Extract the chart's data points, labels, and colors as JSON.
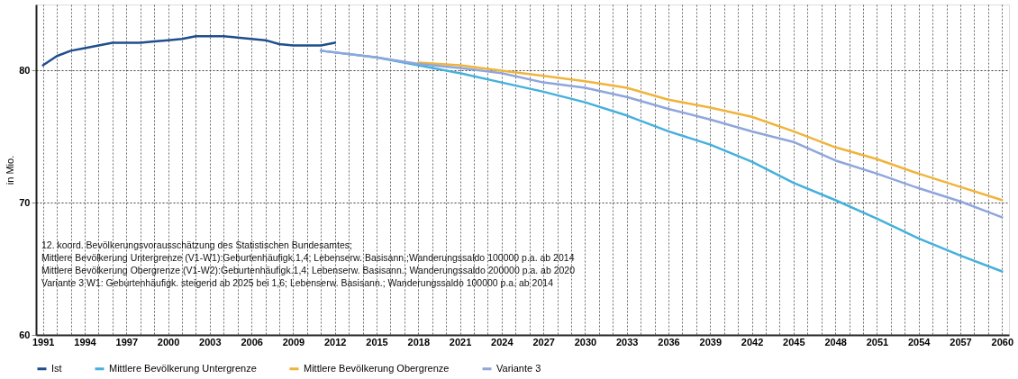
{
  "chart_data": {
    "type": "line",
    "ylabel": "in Mio.",
    "xlim": [
      1990.5,
      2060.5
    ],
    "ylim": [
      60,
      85
    ],
    "yticks": [
      60,
      70,
      80
    ],
    "xticks": [
      1991,
      {
        "value": 1992,
        "label": null
      },
      {
        "value": 1993,
        "label": null
      },
      1994,
      {
        "value": 1995,
        "label": null
      },
      {
        "value": 1996,
        "label": null
      },
      1997,
      {
        "value": 1998,
        "label": null
      },
      {
        "value": 1999,
        "label": null
      },
      2000,
      {
        "value": 2001,
        "label": null
      },
      {
        "value": 2002,
        "label": null
      },
      2003,
      {
        "value": 2004,
        "label": null
      },
      {
        "value": 2005,
        "label": null
      },
      2006,
      {
        "value": 2007,
        "label": null
      },
      {
        "value": 2008,
        "label": null
      },
      2009,
      {
        "value": 2010,
        "label": null
      },
      {
        "value": 2011,
        "label": null
      },
      2012,
      {
        "value": 2013,
        "label": null
      },
      {
        "value": 2014,
        "label": null
      },
      2015,
      {
        "value": 2016,
        "label": null
      },
      {
        "value": 2017,
        "label": null
      },
      2018,
      {
        "value": 2019,
        "label": null
      },
      {
        "value": 2020,
        "label": null
      },
      2021,
      {
        "value": 2022,
        "label": null
      },
      {
        "value": 2023,
        "label": null
      },
      2024,
      {
        "value": 2025,
        "label": null
      },
      {
        "value": 2026,
        "label": null
      },
      2027,
      {
        "value": 2028,
        "label": null
      },
      {
        "value": 2029,
        "label": null
      },
      2030,
      {
        "value": 2031,
        "label": null
      },
      {
        "value": 2032,
        "label": null
      },
      2033,
      {
        "value": 2034,
        "label": null
      },
      {
        "value": 2035,
        "label": null
      },
      2036,
      {
        "value": 2037,
        "label": null
      },
      {
        "value": 2038,
        "label": null
      },
      2039,
      {
        "value": 2040,
        "label": null
      },
      {
        "value": 2041,
        "label": null
      },
      2042,
      {
        "value": 2043,
        "label": null
      },
      {
        "value": 2044,
        "label": null
      },
      2045,
      {
        "value": 2046,
        "label": null
      },
      {
        "value": 2047,
        "label": null
      },
      2048,
      {
        "value": 2049,
        "label": null
      },
      {
        "value": 2050,
        "label": null
      },
      2051,
      {
        "value": 2052,
        "label": null
      },
      {
        "value": 2053,
        "label": null
      },
      2054,
      {
        "value": 2055,
        "label": null
      },
      {
        "value": 2056,
        "label": null
      },
      2057,
      {
        "value": 2058,
        "label": null
      },
      {
        "value": 2059,
        "label": null
      },
      2060
    ],
    "grid": true,
    "legend": "bottom",
    "line_style": "solid",
    "marker": "none",
    "series": [
      {
        "name": "Ist",
        "color": "#1f4e8c",
        "x": [
          1991,
          1992,
          1993,
          1994,
          1995,
          1996,
          1997,
          1998,
          1999,
          2000,
          2001,
          2002,
          2003,
          2004,
          2005,
          2006,
          2007,
          2008,
          2009,
          2010,
          2011,
          2012
        ],
        "values": [
          80.4,
          81.1,
          81.5,
          81.7,
          81.9,
          82.1,
          82.1,
          82.1,
          82.2,
          82.3,
          82.4,
          82.6,
          82.6,
          82.6,
          82.5,
          82.4,
          82.3,
          82.0,
          81.9,
          81.9,
          81.9,
          82.1
        ]
      },
      {
        "name": "Mittlere Bevölkerung Untergrenze",
        "color": "#45b0dc",
        "x": [
          2011,
          2015,
          2018,
          2021,
          2024,
          2027,
          2030,
          2033,
          2036,
          2039,
          2042,
          2045,
          2048,
          2051,
          2054,
          2057,
          2060
        ],
        "values": [
          81.5,
          81.0,
          80.4,
          79.8,
          79.1,
          78.4,
          77.6,
          76.6,
          75.4,
          74.4,
          73.1,
          71.5,
          70.2,
          68.8,
          67.3,
          66.0,
          64.8
        ]
      },
      {
        "name": "Mittlere Bevölkerung Obergrenze",
        "color": "#f0b43c",
        "x": [
          2018,
          2021,
          2024,
          2027,
          2030,
          2033,
          2036,
          2039,
          2042,
          2045,
          2048,
          2051,
          2054,
          2057,
          2060
        ],
        "values": [
          80.6,
          80.4,
          80.0,
          79.6,
          79.2,
          78.7,
          77.8,
          77.2,
          76.5,
          75.4,
          74.2,
          73.3,
          72.2,
          71.2,
          70.2
        ]
      },
      {
        "name": "Variante 3",
        "color": "#8fa6dc",
        "x": [
          2011,
          2015,
          2018,
          2021,
          2024,
          2027,
          2030,
          2033,
          2036,
          2039,
          2042,
          2045,
          2048,
          2051,
          2054,
          2057,
          2060
        ],
        "values": [
          81.5,
          81.0,
          80.5,
          80.2,
          79.8,
          79.1,
          78.7,
          78.0,
          77.1,
          76.3,
          75.4,
          74.6,
          73.2,
          72.2,
          71.1,
          70.1,
          68.9
        ]
      }
    ],
    "annotations": [
      "12. koord. Bevölkerungsvorausschätzung des Statistischen Bundesamtes;",
      "Mittlere Bevölkerung Untergrenze (V1-W1):Geburtenhäufigk.1,4; Lebenserw. Basisann.;Wanderungssaldo 100000 p.a. ab 2014",
      "Mittlere Bevölkerung Obergrenze (V1-W2):Geburtenhäufigk.1,4; Lebenserw. Basisann.; Wanderungssaldo 200000 p.a. ab 2020",
      "Variante 3 W1: Geburtenhäufigk. steigend ab 2025 bei 1,6; Lebenserw. Basisann.; Wanderungssaldo 100000 p.a. ab 2014"
    ]
  }
}
